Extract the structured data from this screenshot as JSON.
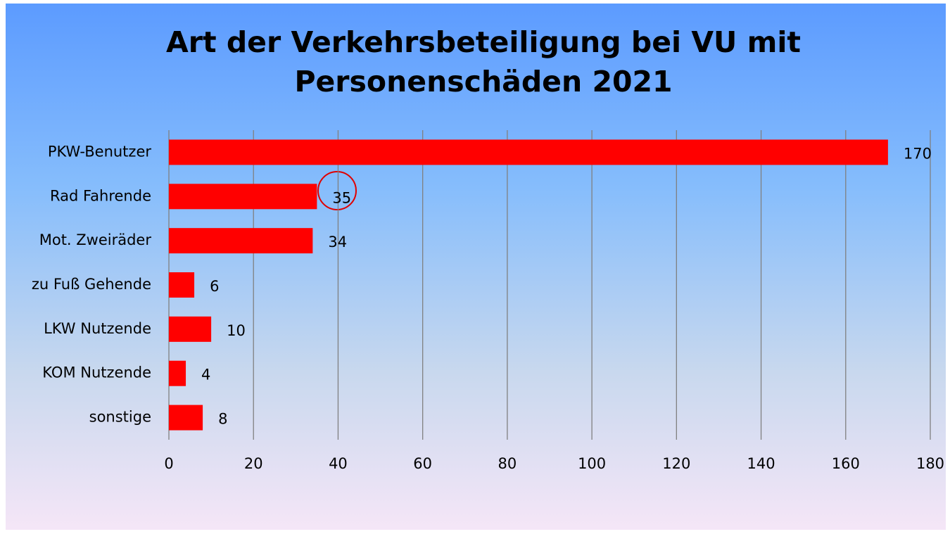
{
  "chart_data": {
    "type": "barh",
    "title": "Art der Verkehrsbeteiligung bei VU mit Personenschäden 2021",
    "categories": [
      "PKW-Benutzer",
      "Rad Fahrende",
      "Mot. Zweiräder",
      "zu Fuß Gehende",
      "LKW Nutzende",
      "KOM Nutzende",
      "sonstige"
    ],
    "values": [
      170,
      35,
      34,
      6,
      10,
      4,
      8
    ],
    "color": "#ff0000",
    "xlim": [
      0,
      180
    ],
    "xticks": [
      0,
      20,
      40,
      60,
      80,
      100,
      120,
      140,
      160,
      180
    ],
    "grid": true
  }
}
